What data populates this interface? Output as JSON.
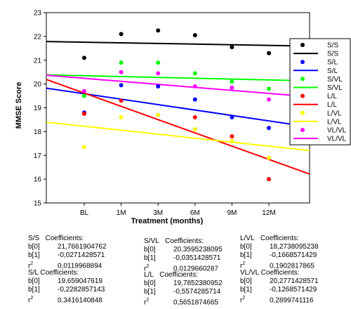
{
  "chart_data": {
    "type": "scatter",
    "xlabel": "Treatment (months)",
    "ylabel": "MMSE Score",
    "categories": [
      "BL",
      "1M",
      "3M",
      "6M",
      "9M",
      "12M"
    ],
    "ylim": [
      15,
      23
    ],
    "yticks": [
      15,
      16,
      17,
      18,
      19,
      20,
      21,
      22,
      23
    ],
    "legend_position": "right",
    "series": [
      {
        "name": "S/S",
        "color": "#000000",
        "points": [
          21.1,
          22.1,
          22.25,
          22.05,
          21.55,
          21.3
        ],
        "fit": [
          21.7661904762,
          -0.0271428571
        ]
      },
      {
        "name": "S/L",
        "color": "#0000ff",
        "points": [
          18.8,
          19.95,
          19.9,
          19.35,
          18.6,
          18.15
        ],
        "fit": [
          19.659047619,
          -0.2282857143
        ]
      },
      {
        "name": "S/VL",
        "color": "#00ff00",
        "points": [
          19.5,
          20.9,
          20.9,
          20.45,
          20.1,
          19.8
        ],
        "fit": [
          20.3595238095,
          -0.0351428571
        ]
      },
      {
        "name": "L/L",
        "color": "#ff0000",
        "points": [
          18.75,
          19.3,
          18.7,
          18.6,
          17.8,
          16.0
        ],
        "fit": [
          19.7852380952,
          -0.5574285714
        ]
      },
      {
        "name": "L/VL",
        "color": "#ffff00",
        "points": [
          17.35,
          18.6,
          18.7,
          18.1,
          17.6,
          16.9
        ],
        "fit": [
          18.2738095238,
          -0.1668571429
        ]
      },
      {
        "name": "VL/VL",
        "color": "#ff00ff",
        "points": [
          19.7,
          20.5,
          20.45,
          19.9,
          19.85,
          19.35
        ],
        "fit": [
          20.2771428571,
          -0.1268571429
        ]
      }
    ]
  },
  "coefficients": [
    {
      "title": "S/S",
      "head": "Coefficients:",
      "b0_label": "b[0]",
      "b0": "21,7661904762",
      "b1_label": "b[1]",
      "b1": "-0,0271428571",
      "r2_label": "r",
      "r2_sup": "2",
      "r2": "0,0119968894"
    },
    {
      "title": "S/L",
      "head": "Coefficients:",
      "b0_label": "b[0]",
      "b0": "19,659047619",
      "b1_label": "b[1]",
      "b1": "-0,2282857143",
      "r2_label": "r",
      "r2_sup": "2",
      "r2": "0,3416140848"
    },
    {
      "title": "S/VL",
      "head": "Coefficients:",
      "b0_label": "b[0]",
      "b0": "20,3595238095",
      "b1_label": "b[1]",
      "b1": "-0,0351428571",
      "r2_label": "r",
      "r2_sup": "2",
      "r2": "0,0129660287"
    },
    {
      "title": "L/L",
      "head": "Coefficients:",
      "b0_label": "b[0]",
      "b0": "19,7852380952",
      "b1_label": "b[1]",
      "b1": "-0,5574285714",
      "r2_label": "r",
      "r2_sup": "2",
      "r2": "0,5651874665"
    },
    {
      "title": "L/VL",
      "head": "Coefficients:",
      "b0_label": "b[0]",
      "b0": "18,2738095238",
      "b1_label": "b[1]",
      "b1": "-0,1668571429",
      "r2_label": "r",
      "r2_sup": "2",
      "r2": "0,1902817865"
    },
    {
      "title": "VL/VL",
      "head": "Coefficients:",
      "b0_label": "b[0]",
      "b0": "20,2771428571",
      "b1_label": "b[1]",
      "b1": "-0,1268571429",
      "r2_label": "r",
      "r2_sup": "2",
      "r2": "0,2899741116"
    }
  ]
}
